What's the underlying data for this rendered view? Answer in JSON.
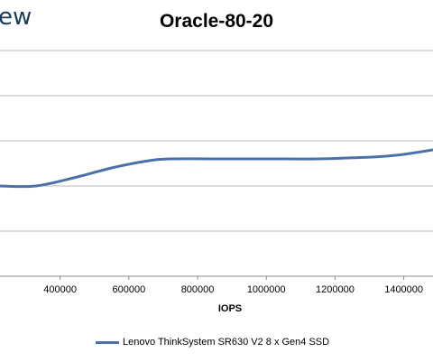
{
  "logo_text": "ew",
  "colors": {
    "series": "#4a72a8",
    "grid": "#bdbdbd",
    "axis": "#8c8c8c",
    "logo": "#1a3b5c"
  },
  "chart_data": {
    "type": "line",
    "title": "Oracle-80-20",
    "xlabel": "IOPS",
    "ylabel": "",
    "x_ticks": [
      400000,
      600000,
      800000,
      1000000,
      1200000,
      1400000
    ],
    "x_tick_labels": [
      "400000",
      "600000",
      "800000",
      "1000000",
      "1200000",
      "1400000"
    ],
    "xlim": [
      225000,
      1485000
    ],
    "y_gridline_count": 5,
    "grid": true,
    "legend_position": "bottom",
    "series": [
      {
        "name": "Lenovo ThinkSystem SR630 V2 8 x Gen4 SSD",
        "x": [
          225000,
          330000,
          450000,
          550000,
          650000,
          720000,
          850000,
          1000000,
          1150000,
          1250000,
          1330000,
          1400000,
          1485000
        ],
        "y": [
          0.4,
          0.4,
          0.44,
          0.48,
          0.51,
          0.52,
          0.52,
          0.52,
          0.52,
          0.525,
          0.53,
          0.54,
          0.56
        ]
      }
    ]
  }
}
